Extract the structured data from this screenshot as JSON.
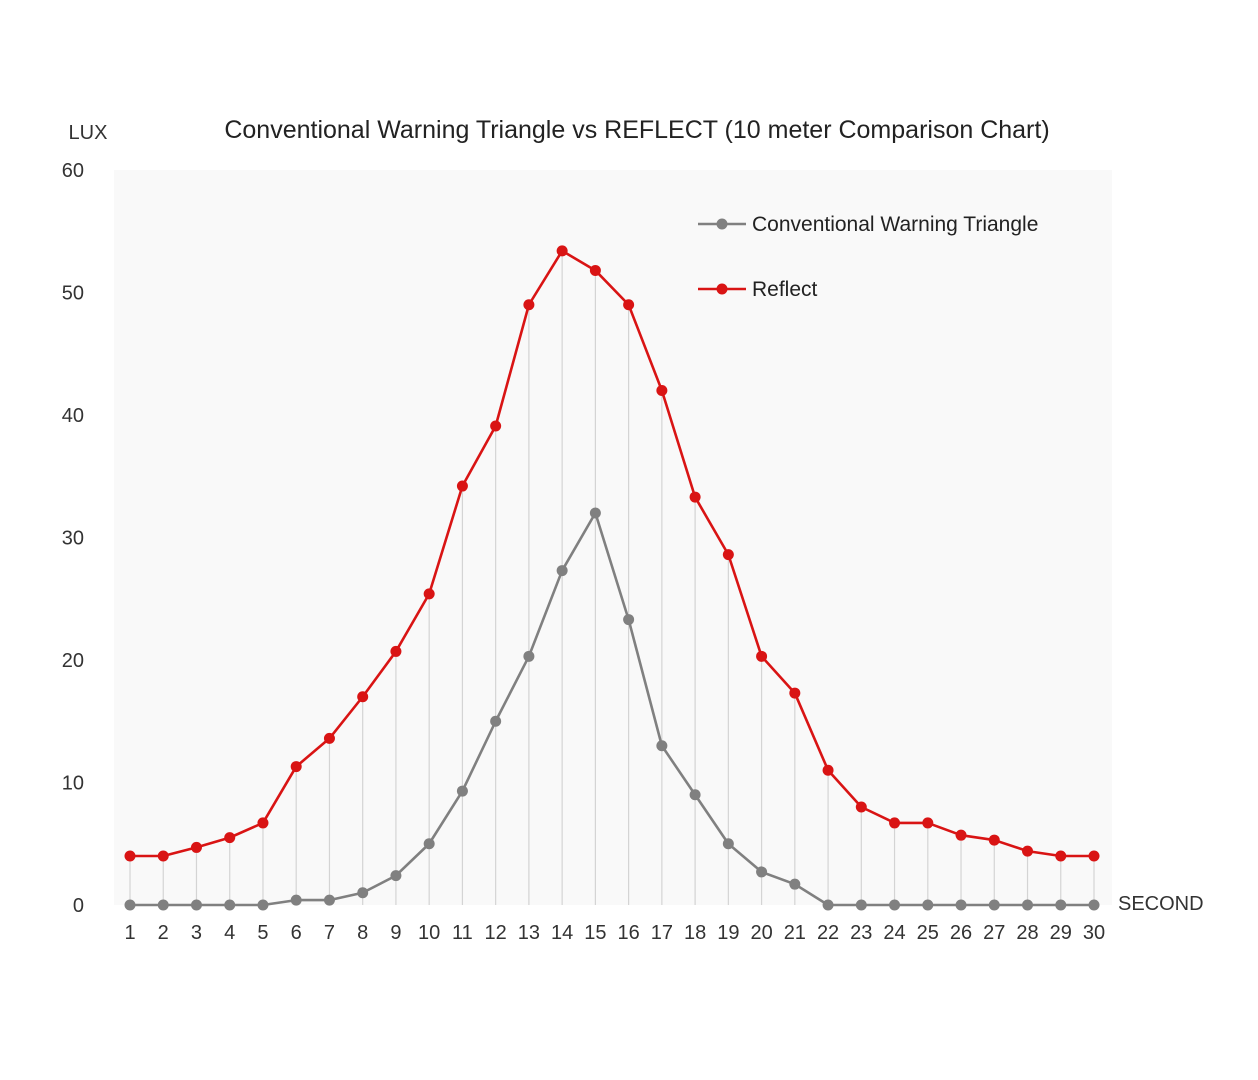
{
  "chart_data": {
    "type": "line",
    "title": "Conventional Warning Triangle vs REFLECT  (10 meter Comparison Chart)",
    "ylabel": "LUX",
    "xlabel": "SECOND",
    "ylim": [
      0,
      60
    ],
    "yticks": [
      0,
      10,
      20,
      30,
      40,
      50,
      60
    ],
    "x": [
      1,
      2,
      3,
      4,
      5,
      6,
      7,
      8,
      9,
      10,
      11,
      12,
      13,
      14,
      15,
      16,
      17,
      18,
      19,
      20,
      21,
      22,
      23,
      24,
      25,
      26,
      27,
      28,
      29,
      30
    ],
    "grid": "vertical drop lines from upper series",
    "legend_position": "top-right",
    "series": [
      {
        "name": "Conventional Warning Triangle",
        "color": "#808080",
        "values": [
          0,
          0,
          0,
          0,
          0,
          0.4,
          0.4,
          1,
          2.4,
          5,
          9.3,
          15,
          20.3,
          27.3,
          32,
          23.3,
          13,
          9,
          5,
          2.7,
          1.7,
          0,
          0,
          0,
          0,
          0,
          0,
          0,
          0,
          0
        ]
      },
      {
        "name": "Reflect",
        "color": "#d91414",
        "values": [
          4,
          4,
          4.7,
          5.5,
          6.7,
          11.3,
          13.6,
          17,
          20.7,
          25.4,
          34.2,
          39.1,
          49,
          53.4,
          51.8,
          49,
          42,
          33.3,
          28.6,
          20.3,
          17.3,
          11,
          8,
          6.7,
          6.7,
          5.7,
          5.3,
          4.4,
          4,
          4
        ]
      }
    ]
  }
}
